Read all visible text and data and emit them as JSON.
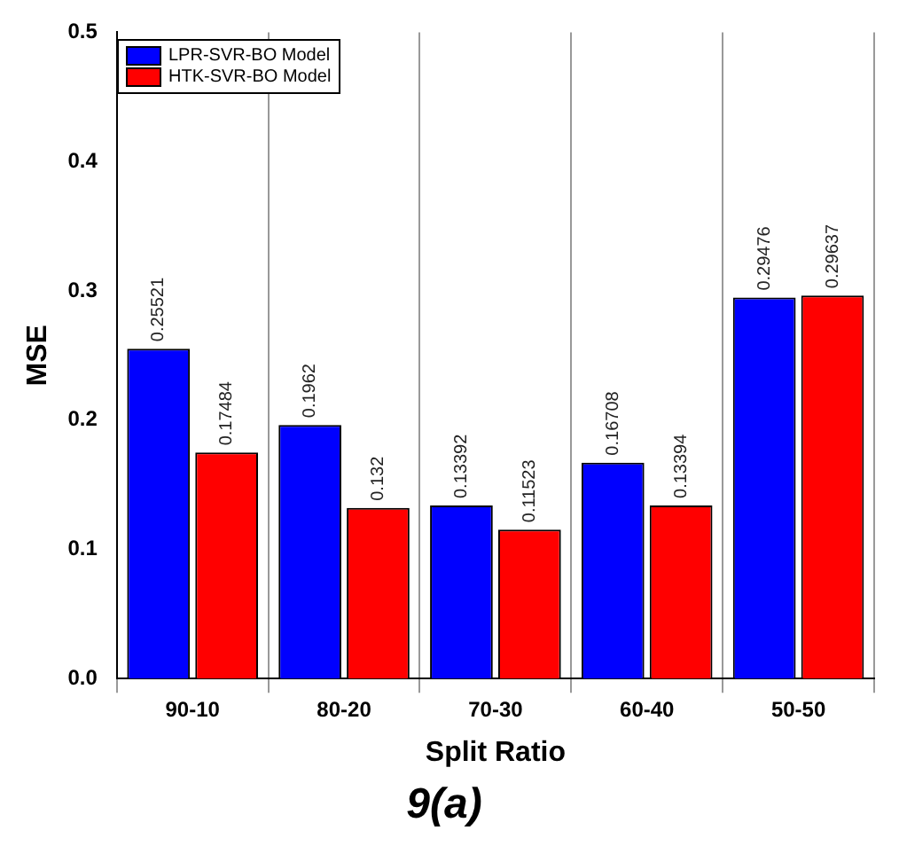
{
  "chart_data": {
    "type": "bar",
    "title": "9(a)",
    "xlabel": "Split Ratio",
    "ylabel": "MSE",
    "categories": [
      "90-10",
      "80-20",
      "70-30",
      "60-40",
      "50-50"
    ],
    "series": [
      {
        "name": "LPR-SVR-BO Model",
        "color": "#0000ff",
        "values": [
          0.25521,
          0.1962,
          0.13392,
          0.16708,
          0.29476
        ]
      },
      {
        "name": "HTK-SVR-BO Model",
        "color": "#ff0000",
        "values": [
          0.17484,
          0.132,
          0.11523,
          0.13394,
          0.29637
        ]
      }
    ],
    "ylim": [
      0,
      0.5
    ],
    "yticks": [
      {
        "value": 0,
        "label": "0.0"
      },
      {
        "value": 0.1,
        "label": "0.1"
      },
      {
        "value": 0.2,
        "label": "0.2"
      },
      {
        "value": 0.3,
        "label": "0.3"
      },
      {
        "value": 0.4,
        "label": "0.4"
      },
      {
        "value": 0.5,
        "label": "0.5"
      }
    ],
    "grid": "x",
    "legend": "top left",
    "data_labels": true
  }
}
